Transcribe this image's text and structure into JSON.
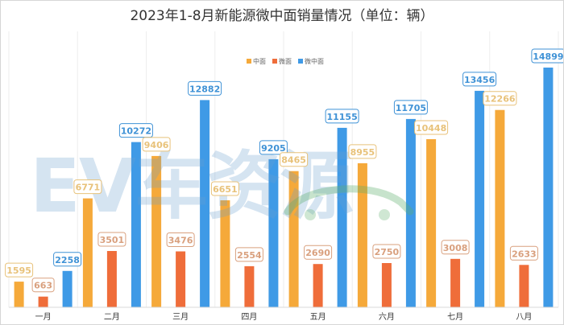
{
  "chart_data": {
    "type": "bar",
    "title": "2023年1-8月新能源微中面销量情况（单位：辆）",
    "categories": [
      "一月",
      "二月",
      "三月",
      "四月",
      "五月",
      "六月",
      "七月",
      "八月"
    ],
    "series": [
      {
        "name": "中面",
        "values": [
          1595,
          6771,
          9406,
          6651,
          8465,
          8955,
          10448,
          12266
        ],
        "color": "#f5a93a",
        "label_color": "#e8c27a"
      },
      {
        "name": "微面",
        "values": [
          663,
          3501,
          3476,
          2554,
          2690,
          2750,
          3008,
          2633
        ],
        "color": "#ef6d3a",
        "label_color": "#d9a07e"
      },
      {
        "name": "微中面",
        "values": [
          2258,
          10272,
          12882,
          9205,
          11155,
          11705,
          13456,
          14899
        ],
        "color": "#3f9ae6",
        "label_color": "#3f92d6"
      }
    ],
    "ylim": [
      0,
      16300
    ],
    "grid": "vertical",
    "legend_position": "top-right"
  },
  "watermark": {
    "text": "EV车资源",
    "colors": {
      "blue": "#6a9fcf",
      "green": "#6bb97a",
      "car": "#5fb06c"
    }
  }
}
